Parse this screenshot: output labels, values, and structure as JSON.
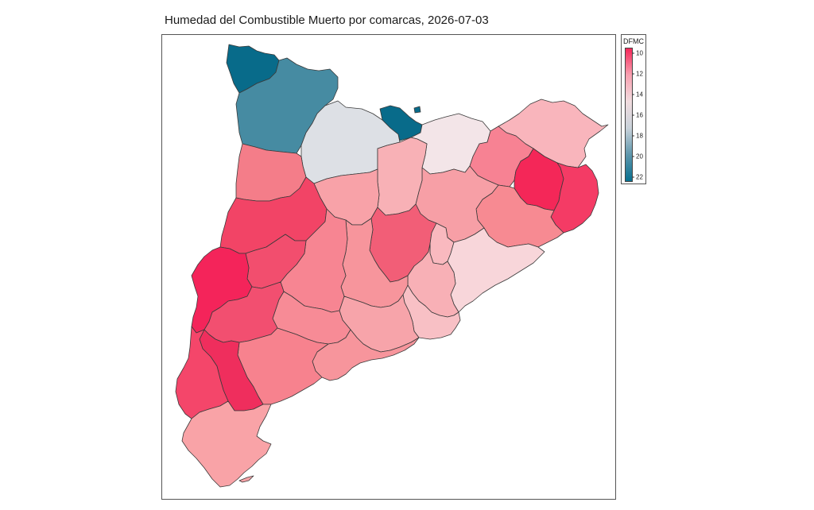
{
  "title": "Humedad del Combustible Muerto por comarcas, 2026-07-03",
  "legend": {
    "title": "DFMC",
    "ticks": [
      "10",
      "12",
      "14",
      "16",
      "18",
      "20",
      "22"
    ],
    "scale_min": 9.5,
    "scale_max": 22.5,
    "gradient": [
      "#f5285a",
      "#f8a0b0",
      "#f1dcdf",
      "#c9d2da",
      "#5f97ad",
      "#07708f"
    ]
  },
  "map": {
    "border_color": "#3a3a3a",
    "regions": [
      {
        "id": "val-d-aran",
        "dfmc": 22.5,
        "color": "#086b8a"
      },
      {
        "id": "alta-ribagorca-pallars-sobira",
        "dfmc": 20.6,
        "color": "#468ba2"
      },
      {
        "id": "alt-urgell",
        "dfmc": 17.0,
        "color": "#dde0e5"
      },
      {
        "id": "andorra-cerdanya",
        "dfmc": 22.2,
        "color": "#086b8a"
      },
      {
        "id": "ripolles",
        "dfmc": 15.2,
        "color": "#f3e5e8"
      },
      {
        "id": "garrotxa",
        "dfmc": 11.8,
        "color": "#f78293"
      },
      {
        "id": "alt-emporda",
        "dfmc": 13.2,
        "color": "#f9b5bc"
      },
      {
        "id": "pla-de-l-estany",
        "dfmc": 9.6,
        "color": "#f42758"
      },
      {
        "id": "baix-emporda",
        "dfmc": 10.0,
        "color": "#f43b65"
      },
      {
        "id": "gironès",
        "dfmc": 11.9,
        "color": "#f78a92"
      },
      {
        "id": "selva",
        "dfmc": 12.3,
        "color": "#f7979e"
      },
      {
        "id": "osona",
        "dfmc": 12.7,
        "color": "#f79fa6"
      },
      {
        "id": "bergueda",
        "dfmc": 13.5,
        "color": "#f8b1b6"
      },
      {
        "id": "solsones",
        "dfmc": 12.6,
        "color": "#f8a2a8"
      },
      {
        "id": "pallars-jussa",
        "dfmc": 11.7,
        "color": "#f47d89"
      },
      {
        "id": "noguera",
        "dfmc": 10.3,
        "color": "#f24466"
      },
      {
        "id": "urgell-segarra",
        "dfmc": 12.0,
        "color": "#f78592"
      },
      {
        "id": "bages",
        "dfmc": 11.0,
        "color": "#f25e77"
      },
      {
        "id": "moianes-valles-oriental",
        "dfmc": 13.6,
        "color": "#f9b9bf"
      },
      {
        "id": "maresme",
        "dfmc": 14.5,
        "color": "#f8d6da"
      },
      {
        "id": "valles-occidental",
        "dfmc": 13.1,
        "color": "#f8b0b6"
      },
      {
        "id": "barcelones-baix-llobregat",
        "dfmc": 13.8,
        "color": "#f8c0c5"
      },
      {
        "id": "anoia",
        "dfmc": 12.3,
        "color": "#f7959c"
      },
      {
        "id": "alt-penedes-garraf",
        "dfmc": 12.8,
        "color": "#f7a4aa"
      },
      {
        "id": "segria",
        "dfmc": 9.7,
        "color": "#f4245a"
      },
      {
        "id": "pla-d-urgell-garrigues",
        "dfmc": 10.6,
        "color": "#f24e6e"
      },
      {
        "id": "conca-de-barbera-alt-camp",
        "dfmc": 12.2,
        "color": "#f78b96"
      },
      {
        "id": "baix-penedes-tarragones",
        "dfmc": 12.5,
        "color": "#f7959c"
      },
      {
        "id": "ribera-d-ebre",
        "dfmc": 10.4,
        "color": "#f24f70"
      },
      {
        "id": "priorat",
        "dfmc": 9.8,
        "color": "#ef2e5d"
      },
      {
        "id": "terra-alta",
        "dfmc": 10.3,
        "color": "#f4466a"
      },
      {
        "id": "baix-camp",
        "dfmc": 11.9,
        "color": "#f7828e"
      },
      {
        "id": "baix-ebre-montsia",
        "dfmc": 13.1,
        "color": "#f9a3a7"
      }
    ]
  }
}
